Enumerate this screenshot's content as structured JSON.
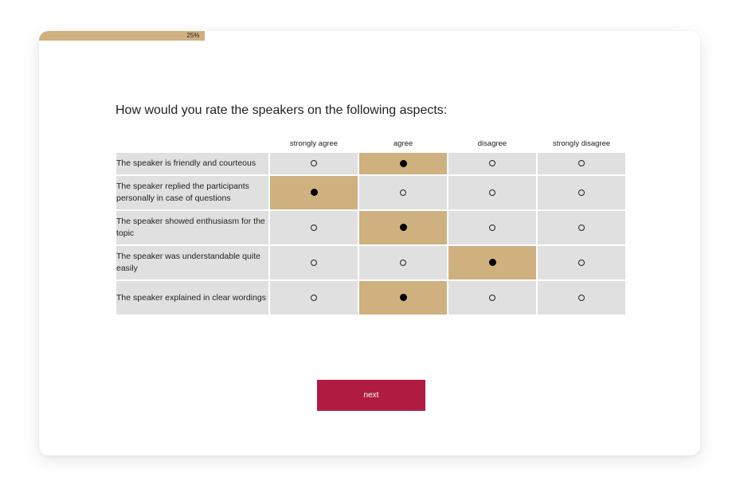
{
  "progress": {
    "label": "25%",
    "value": 0.25,
    "color": "#cfb07f"
  },
  "question": "How would you rate the speakers on the following aspects:",
  "columns": [
    "strongly agree",
    "agree",
    "disagree",
    "strongly disagree"
  ],
  "rows": [
    {
      "label": "The speaker is friendly and courteous",
      "selected": 1
    },
    {
      "label": "The speaker replied the participants personally in case of questions",
      "selected": 0
    },
    {
      "label": "The speaker showed enthusiasm for the topic",
      "selected": 1
    },
    {
      "label": "The speaker was understandable quite easily",
      "selected": 2
    },
    {
      "label": "The speaker explained in clear wordings",
      "selected": 1
    }
  ],
  "next_button": {
    "label": "next",
    "color": "#b01b41"
  },
  "colors": {
    "accent": "#cfb07f",
    "cell": "#e0e0e0"
  }
}
